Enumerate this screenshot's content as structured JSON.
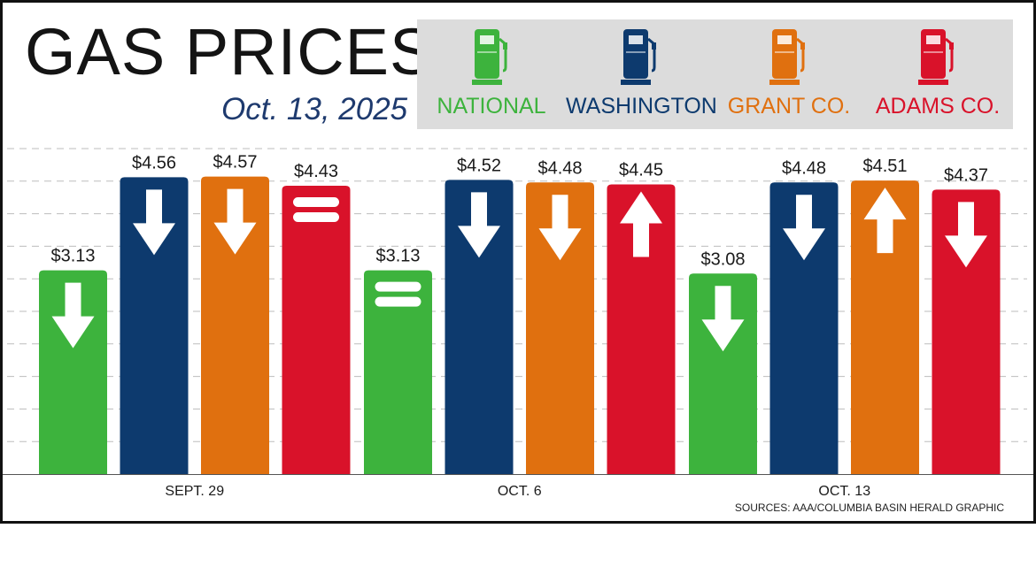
{
  "header": {
    "title": "GAS PRICES",
    "date": "Oct. 13, 2025"
  },
  "colors": {
    "NATIONAL": "#3db33d",
    "WASHINGTON": "#0d3a6e",
    "GRANT CO.": "#e0700f",
    "ADAMS CO.": "#d9122a"
  },
  "legend": [
    {
      "label": "NATIONAL",
      "icon": "gas-pump-icon",
      "color": "#3db33d"
    },
    {
      "label": "WASHINGTON",
      "icon": "gas-pump-icon",
      "color": "#0d3a6e"
    },
    {
      "label": "GRANT CO.",
      "icon": "gas-pump-icon",
      "color": "#e0700f"
    },
    {
      "label": "ADAMS CO.",
      "icon": "gas-pump-icon",
      "color": "#d9122a"
    }
  ],
  "chart_data": {
    "type": "bar",
    "categories": [
      "SEPT. 29",
      "OCT. 6",
      "OCT. 13"
    ],
    "series": [
      {
        "name": "NATIONAL",
        "values": [
          3.13,
          3.13,
          3.08
        ],
        "value_labels": [
          "$3.13",
          "$3.13",
          "$3.08"
        ],
        "trend": [
          "down",
          "same",
          "down"
        ]
      },
      {
        "name": "WASHINGTON",
        "values": [
          4.56,
          4.52,
          4.48
        ],
        "value_labels": [
          "$4.56",
          "$4.52",
          "$4.48"
        ],
        "trend": [
          "down",
          "down",
          "down"
        ]
      },
      {
        "name": "GRANT CO.",
        "values": [
          4.57,
          4.48,
          4.51
        ],
        "value_labels": [
          "$4.57",
          "$4.48",
          "$4.51"
        ],
        "trend": [
          "down",
          "down",
          "up"
        ]
      },
      {
        "name": "ADAMS CO.",
        "values": [
          4.43,
          4.45,
          4.37
        ],
        "value_labels": [
          "$4.43",
          "$4.45",
          "$4.37"
        ],
        "trend": [
          "same",
          "up",
          "down"
        ]
      }
    ],
    "ylim": [
      0,
      5
    ],
    "grid": true,
    "legend": "top-right"
  },
  "footer": {
    "source": "SOURCES: AAA/COLUMBIA BASIN HERALD GRAPHIC"
  }
}
